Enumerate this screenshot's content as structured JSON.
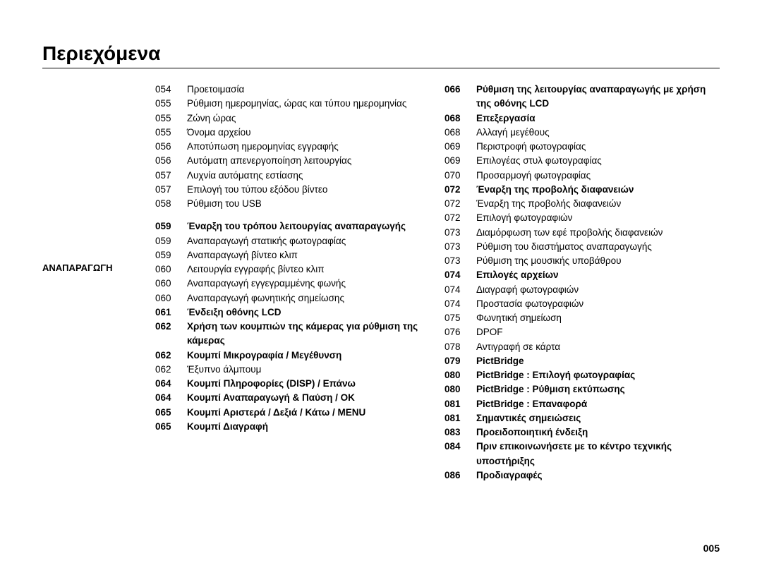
{
  "title": "Περιεχόμενα",
  "section_label": "ΑΝΑΠΑΡΑΓΩΓΗ",
  "page_number": "005",
  "col1": [
    {
      "page": "054",
      "text": "Προετοιμασία",
      "bold": false
    },
    {
      "page": "055",
      "text": "Ρύθμιση ημερομηνίας, ώρας και τύπου ημερομηνίας",
      "bold": false
    },
    {
      "page": "055",
      "text": "Ζώνη ώρας",
      "bold": false
    },
    {
      "page": "055",
      "text": "Όνομα αρχείου",
      "bold": false
    },
    {
      "page": "056",
      "text": "Αποτύπωση ημερομηνίας εγγραφής",
      "bold": false
    },
    {
      "page": "056",
      "text": "Αυτόματη απενεργοποίηση λειτουργίας",
      "bold": false
    },
    {
      "page": "057",
      "text": "Λυχνία αυτόματης εστίασης",
      "bold": false
    },
    {
      "page": "057",
      "text": "Επιλογή του τύπου εξόδου βίντεο",
      "bold": false
    },
    {
      "page": "058",
      "text": "Ρύθμιση του USB",
      "bold": false
    },
    {
      "spacer": true
    },
    {
      "page": "059",
      "text": "Έναρξη του τρόπου λειτουργίας αναπαραγωγής",
      "bold": true
    },
    {
      "page": "059",
      "text": "Αναπαραγωγή στατικής φωτογραφίας",
      "bold": false
    },
    {
      "page": "059",
      "text": "Αναπαραγωγή βίντεο κλιπ",
      "bold": false
    },
    {
      "page": "060",
      "text": "Λειτουργία εγγραφής βίντεο κλιπ",
      "bold": false
    },
    {
      "page": "060",
      "text": "Αναπαραγωγή εγγεγραμμένης φωνής",
      "bold": false
    },
    {
      "page": "060",
      "text": "Αναπαραγωγή φωνητικής σημείωσης",
      "bold": false
    },
    {
      "page": "061",
      "text": "Ένδειξη οθόνης LCD",
      "bold": true
    },
    {
      "page": "062",
      "text": "Χρήση των κουμπιών της κάμερας για ρύθμιση της κάμερας",
      "bold": true
    },
    {
      "page": "062",
      "text": "Κουμπί Μικρογραφία / Μεγέθυνση",
      "bold": true
    },
    {
      "page": "062",
      "text": "Έξυπνο άλμπουμ",
      "bold": false
    },
    {
      "page": "064",
      "text": "Κουμπί Πληροφορίες (DISP) / Επάνω",
      "bold": true
    },
    {
      "page": "064",
      "text": "Κουμπί Αναπαραγωγή & Παύση / OK",
      "bold": true
    },
    {
      "page": "065",
      "text": "Κουμπί Αριστερά / Δεξιά / Κάτω / MENU",
      "bold": true
    },
    {
      "page": "065",
      "text": "Κουμπί Διαγραφή",
      "bold": true
    }
  ],
  "col2": [
    {
      "page": "066",
      "text": "Ρύθμιση της λειτουργίας αναπαραγωγής με χρήση της οθόνης LCD",
      "bold": true
    },
    {
      "page": "068",
      "text": "Επεξεργασία",
      "bold": true
    },
    {
      "page": "068",
      "text": "Αλλαγή μεγέθους",
      "bold": false
    },
    {
      "page": "069",
      "text": "Περιστροφή φωτογραφίας",
      "bold": false
    },
    {
      "page": "069",
      "text": "Επιλογέας στυλ φωτογραφίας",
      "bold": false
    },
    {
      "page": "070",
      "text": "Προσαρμογή φωτογραφίας",
      "bold": false
    },
    {
      "page": "072",
      "text": "Έναρξη της προβολής διαφανειών",
      "bold": true
    },
    {
      "page": "072",
      "text": "Έναρξη της προβολής διαφανειών",
      "bold": false
    },
    {
      "page": "072",
      "text": "Επιλογή φωτογραφιών",
      "bold": false
    },
    {
      "page": "073",
      "text": "Διαμόρφωση των εφέ προβολής διαφανειών",
      "bold": false
    },
    {
      "page": "073",
      "text": "Ρύθμιση του διαστήματος αναπαραγωγής",
      "bold": false
    },
    {
      "page": "073",
      "text": "Ρύθμιση της μουσικής υποβάθρου",
      "bold": false
    },
    {
      "page": "074",
      "text": "Επιλογές αρχείων",
      "bold": true
    },
    {
      "page": "074",
      "text": "Διαγραφή φωτογραφιών",
      "bold": false
    },
    {
      "page": "074",
      "text": "Προστασία φωτογραφιών",
      "bold": false
    },
    {
      "page": "075",
      "text": "Φωνητική σημείωση",
      "bold": false
    },
    {
      "page": "076",
      "text": "DPOF",
      "bold": false
    },
    {
      "page": "078",
      "text": "Αντιγραφή σε κάρτα",
      "bold": false
    },
    {
      "page": "079",
      "text": "PictBridge",
      "bold": true
    },
    {
      "page": "080",
      "text": "PictBridge : Επιλογή φωτογραφίας",
      "bold": true
    },
    {
      "page": "080",
      "text": "PictBridge : Ρύθμιση εκτύπωσης",
      "bold": true
    },
    {
      "page": "081",
      "text": "PictBridge : Επαναφορά",
      "bold": true
    },
    {
      "page": "081",
      "text": "Σημαντικές σημειώσεις",
      "bold": true
    },
    {
      "page": "083",
      "text": "Προειδοποιητική ένδειξη",
      "bold": true
    },
    {
      "page": "084",
      "text": "Πριν επικοινωνήσετε με το κέντρο τεχνικής υποστήριξης",
      "bold": true
    },
    {
      "page": "086",
      "text": "Προδιαγραφές",
      "bold": true
    }
  ]
}
